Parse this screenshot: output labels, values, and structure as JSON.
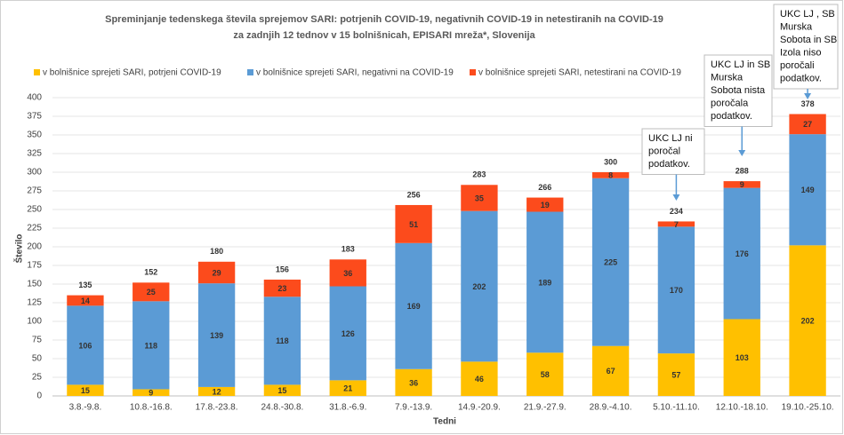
{
  "chart_data": {
    "type": "stacked_bar",
    "title": [
      "Spreminjanje tedenskega števila sprejemov SARI: potrjenih COVID-19, negativnih COVID-19 in netestiranih na COVID-19",
      "za zadnjih 12 tednov v 15 bolnišnicah, EPISARI mreža*, Slovenija"
    ],
    "x_label": "Tedni",
    "y_label": "Število",
    "categories": [
      "3.8.-9.8.",
      "10.8.-16.8.",
      "17.8.-23.8.",
      "24.8.-30.8.",
      "31.8.-6.9.",
      "7.9.-13.9.",
      "14.9.-20.9.",
      "21.9.-27.9.",
      "28.9.-4.10.",
      "5.10.-11.10.",
      "12.10.-18.10.",
      "19.10.-25.10."
    ],
    "series": [
      {
        "name": "v bolnišnice sprejeti SARI, potrjeni COVID-19",
        "color": "#ffc000",
        "values": [
          15,
          9,
          12,
          15,
          21,
          36,
          46,
          58,
          67,
          57,
          103,
          202
        ]
      },
      {
        "name": "v bolnišnice sprejeti SARI, negativni na COVID-19",
        "color": "#5b9bd5",
        "values": [
          106,
          118,
          139,
          118,
          126,
          169,
          202,
          189,
          225,
          170,
          176,
          149
        ]
      },
      {
        "name": "v bolnišnice sprejeti SARI, netestirani na COVID-19",
        "color": "#fc4b1c",
        "values": [
          14,
          25,
          29,
          23,
          36,
          51,
          35,
          19,
          8,
          7,
          9,
          27
        ]
      }
    ],
    "totals": [
      135,
      152,
      180,
      156,
      183,
      256,
      283,
      266,
      300,
      234,
      288,
      378
    ],
    "annotations": [
      {
        "category": "5.10.-11.10.",
        "lines": [
          "UKC LJ ni",
          "poročal",
          "podatkov."
        ]
      },
      {
        "category": "12.10.-18.10.",
        "lines": [
          "UKC LJ in SB",
          "Murska",
          "Sobota nista",
          "poročala",
          "podatkov."
        ]
      },
      {
        "category": "19.10.-25.10.",
        "lines": [
          "UKC LJ , SB",
          "Murska",
          "Sobota in SB",
          "Izola niso",
          "poročali",
          "podatkov."
        ]
      }
    ],
    "ylim": [
      0,
      400
    ],
    "yticks": [
      0,
      25,
      50,
      75,
      100,
      125,
      150,
      175,
      200,
      225,
      250,
      275,
      300,
      325,
      350,
      375,
      400
    ],
    "grid": true,
    "legend": "top"
  }
}
